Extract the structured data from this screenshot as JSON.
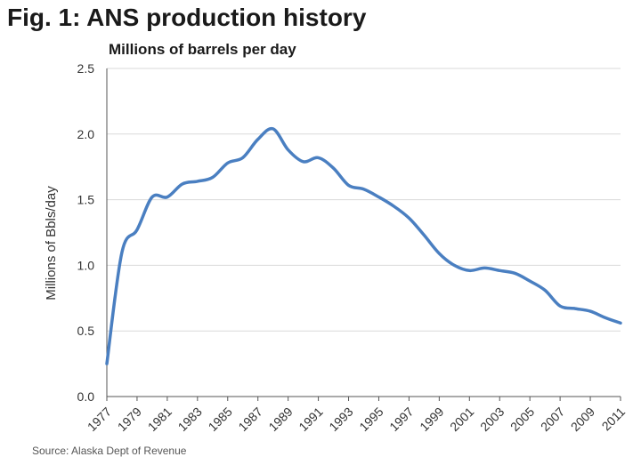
{
  "figure": {
    "title": "Fig. 1: ANS production history",
    "subtitle": "Millions of barrels per day",
    "source": "Source: Alaska Dept of Revenue"
  },
  "chart_data": {
    "type": "line",
    "ylabel": "Millions of Bbls/day",
    "xlabel": "",
    "ylim": [
      0,
      2.5
    ],
    "xlim": [
      1977,
      2011
    ],
    "yticks": [
      "0.0",
      "0.5",
      "1.0",
      "1.5",
      "2.0",
      "2.5"
    ],
    "xticks": [
      "1977",
      "1979",
      "1981",
      "1983",
      "1985",
      "1987",
      "1989",
      "1991",
      "1993",
      "1995",
      "1997",
      "1999",
      "2001",
      "2003",
      "2005",
      "2007",
      "2009",
      "2011"
    ],
    "grid": true,
    "series_color": "#4a7fc1",
    "series": [
      {
        "x": [
          1977,
          1978,
          1979,
          1980,
          1981,
          1982,
          1983,
          1984,
          1985,
          1986,
          1987,
          1988,
          1989,
          1990,
          1991,
          1992,
          1993,
          1994,
          1995,
          1996,
          1997,
          1998,
          1999,
          2000,
          2001,
          2002,
          2003,
          2004,
          2005,
          2006,
          2007,
          2008,
          2009,
          2010,
          2011
        ],
        "values": [
          0.25,
          1.1,
          1.27,
          1.52,
          1.52,
          1.62,
          1.64,
          1.67,
          1.78,
          1.82,
          1.96,
          2.04,
          1.88,
          1.79,
          1.82,
          1.74,
          1.61,
          1.58,
          1.52,
          1.45,
          1.36,
          1.23,
          1.09,
          1.0,
          0.96,
          0.98,
          0.96,
          0.94,
          0.88,
          0.81,
          0.69,
          0.67,
          0.65,
          0.6,
          0.56
        ]
      }
    ]
  }
}
